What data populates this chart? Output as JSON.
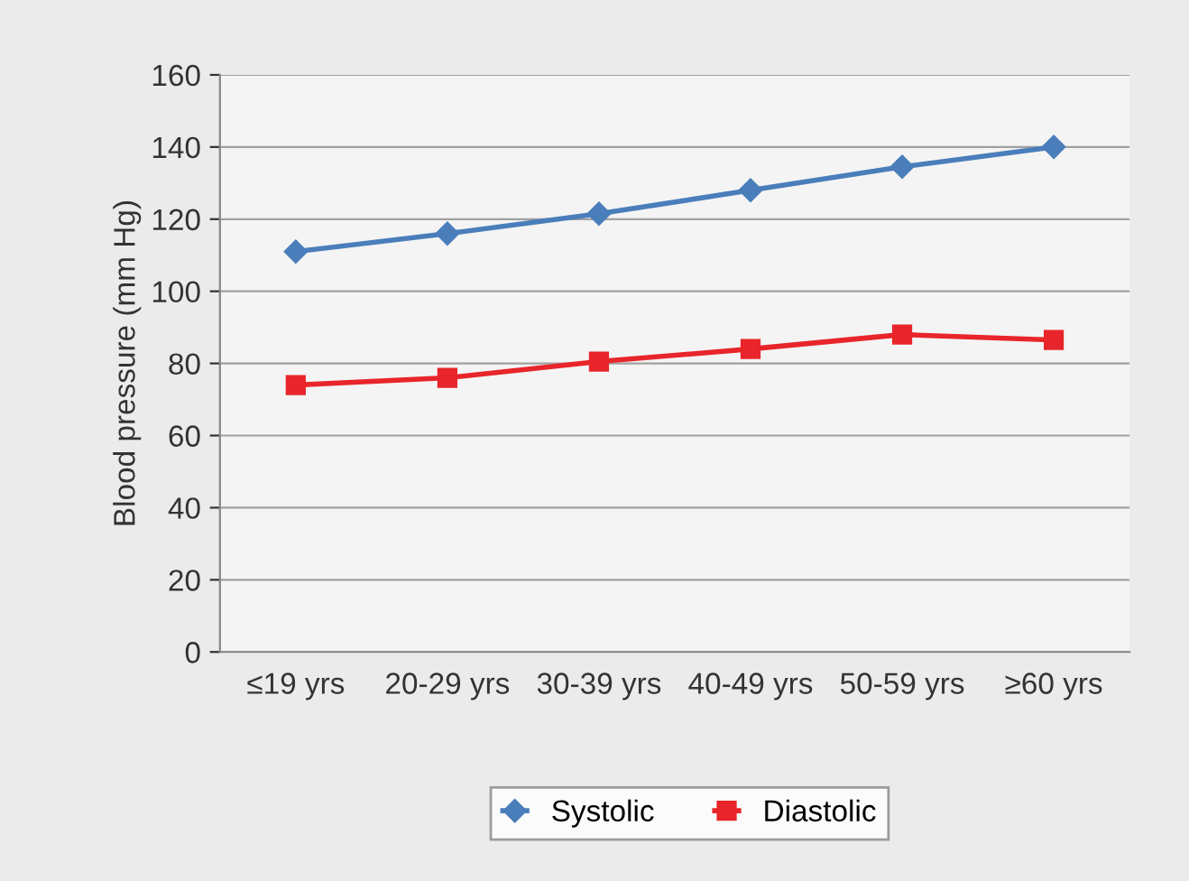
{
  "chart_data": {
    "type": "line",
    "ylabel": "Blood pressure (mm Hg)",
    "categories": [
      "≤19 yrs",
      "20-29 yrs",
      "30-39 yrs",
      "40-49 yrs",
      "50-59 yrs",
      "≥60 yrs"
    ],
    "series": [
      {
        "name": "Systolic",
        "color": "#4a7ebb",
        "marker": "diamond",
        "values": [
          111,
          116,
          121.5,
          128,
          134.5,
          140
        ]
      },
      {
        "name": "Diastolic",
        "color": "#e8252a",
        "marker": "square",
        "values": [
          74,
          76,
          80.5,
          84,
          88,
          86.5
        ]
      }
    ],
    "ylim": [
      0,
      160
    ],
    "yticks": [
      0,
      20,
      40,
      60,
      80,
      100,
      120,
      140,
      160
    ],
    "grid": "y",
    "legend": "bottom",
    "line_style": "solid"
  }
}
